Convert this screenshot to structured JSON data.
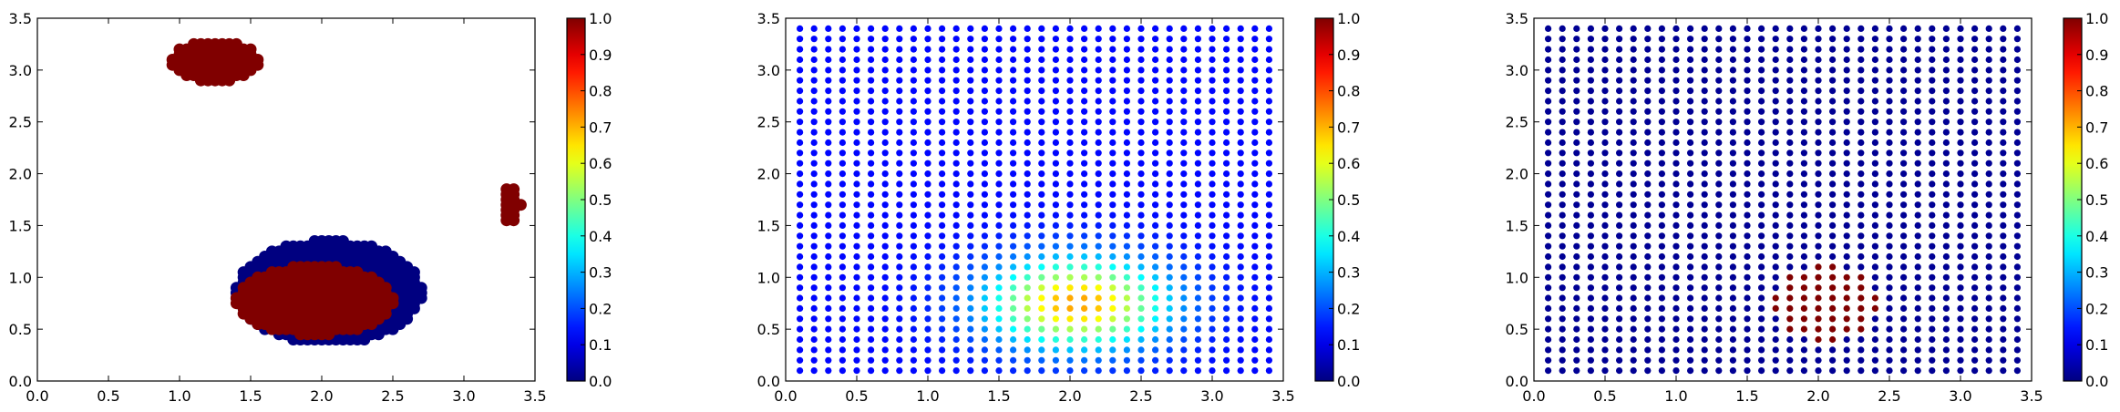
{
  "chart_data": [
    {
      "type": "scatter",
      "title": "",
      "xlabel": "",
      "ylabel": "",
      "xlim": [
        0.0,
        3.5
      ],
      "ylim": [
        0.0,
        3.5
      ],
      "xticks": [
        "0.0",
        "0.5",
        "1.0",
        "1.5",
        "2.0",
        "2.5",
        "3.0",
        "3.5"
      ],
      "yticks": [
        "0.0",
        "0.5",
        "1.0",
        "1.5",
        "2.0",
        "2.5",
        "3.0",
        "3.5"
      ],
      "colorbar": {
        "colormap": "jet",
        "range": [
          0.0,
          1.0
        ],
        "ticks": [
          "0.0",
          "0.1",
          "0.2",
          "0.3",
          "0.4",
          "0.5",
          "0.6",
          "0.7",
          "0.8",
          "0.9",
          "1.0"
        ]
      },
      "grid": false,
      "grid_spacing": 0.1,
      "point_groups": [
        {
          "shape": "ellipse",
          "cx": 1.25,
          "cy": 3.08,
          "rx": 0.32,
          "ry": 0.2,
          "value": 1.0
        },
        {
          "shape": "ellipse",
          "cx": 3.33,
          "cy": 1.7,
          "rx": 0.07,
          "ry": 0.17,
          "value": 1.0
        },
        {
          "shape": "ellipse",
          "cx": 2.05,
          "cy": 0.86,
          "rx": 0.66,
          "ry": 0.5,
          "value": 0.0
        },
        {
          "shape": "ellipse",
          "cx": 1.95,
          "cy": 0.78,
          "rx": 0.56,
          "ry": 0.34,
          "value": 1.0
        }
      ]
    },
    {
      "type": "scatter",
      "title": "",
      "xlabel": "",
      "ylabel": "",
      "xlim": [
        0.0,
        3.5
      ],
      "ylim": [
        0.0,
        3.5
      ],
      "xticks": [
        "0.0",
        "0.5",
        "1.0",
        "1.5",
        "2.0",
        "2.5",
        "3.0",
        "3.5"
      ],
      "yticks": [
        "0.0",
        "0.5",
        "1.0",
        "1.5",
        "2.0",
        "2.5",
        "3.0",
        "3.5"
      ],
      "colorbar": {
        "colormap": "jet",
        "range": [
          0.0,
          1.0
        ],
        "ticks": [
          "0.0",
          "0.1",
          "0.2",
          "0.3",
          "0.4",
          "0.5",
          "0.6",
          "0.7",
          "0.8",
          "0.9",
          "1.0"
        ]
      },
      "grid": false,
      "grid_x": [
        0.1,
        3.4
      ],
      "grid_y": [
        0.1,
        3.4
      ],
      "grid_spacing": 0.1,
      "field": {
        "kind": "gaussian",
        "cx": 2.05,
        "cy": 0.75,
        "sx": 0.62,
        "sy": 0.42,
        "peak": 0.72,
        "floor": 0.13
      }
    },
    {
      "type": "scatter",
      "title": "",
      "xlabel": "",
      "ylabel": "",
      "xlim": [
        0.0,
        3.5
      ],
      "ylim": [
        0.0,
        3.5
      ],
      "xticks": [
        "0.0",
        "0.5",
        "1.0",
        "1.5",
        "2.0",
        "2.5",
        "3.0",
        "3.5"
      ],
      "yticks": [
        "0.0",
        "0.5",
        "1.0",
        "1.5",
        "2.0",
        "2.5",
        "3.0",
        "3.5"
      ],
      "colorbar": {
        "colormap": "jet",
        "range": [
          0.0,
          1.0
        ],
        "ticks": [
          "0.0",
          "0.1",
          "0.2",
          "0.3",
          "0.4",
          "0.5",
          "0.6",
          "0.7",
          "0.8",
          "0.9",
          "1.0"
        ]
      },
      "grid": false,
      "grid_x": [
        0.1,
        3.4
      ],
      "grid_y": [
        0.1,
        3.4
      ],
      "grid_spacing": 0.1,
      "field": {
        "kind": "disk",
        "cx": 2.05,
        "cy": 0.75,
        "r": 0.36,
        "inside": 1.0,
        "outside": 0.02
      }
    }
  ]
}
